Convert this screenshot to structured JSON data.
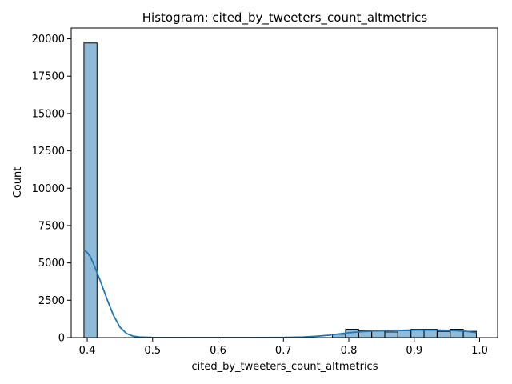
{
  "chart_data": {
    "type": "bar",
    "title": "Histogram: cited_by_tweeters_count_altmetrics",
    "xlabel": "cited_by_tweeters_count_altmetrics",
    "ylabel": "Count",
    "xlim": [
      0.3755,
      1.0275
    ],
    "ylim": [
      0,
      20725
    ],
    "xticks": [
      0.4,
      0.5,
      0.6,
      0.7,
      0.8,
      0.9,
      1.0
    ],
    "xtick_labels": [
      "0.4",
      "0.5",
      "0.6",
      "0.7",
      "0.8",
      "0.9",
      "1.0"
    ],
    "yticks": [
      0,
      2500,
      5000,
      7500,
      10000,
      12500,
      15000,
      17500,
      20000
    ],
    "ytick_labels": [
      "0",
      "2500",
      "5000",
      "7500",
      "10000",
      "12500",
      "15000",
      "17500",
      "20000"
    ],
    "bin_width": 0.02,
    "bins": [
      {
        "x0": 0.395,
        "x1": 0.415,
        "count": 19720
      },
      {
        "x0": 0.775,
        "x1": 0.795,
        "count": 230
      },
      {
        "x0": 0.795,
        "x1": 0.815,
        "count": 560
      },
      {
        "x0": 0.815,
        "x1": 0.835,
        "count": 450
      },
      {
        "x0": 0.835,
        "x1": 0.855,
        "count": 470
      },
      {
        "x0": 0.855,
        "x1": 0.875,
        "count": 380
      },
      {
        "x0": 0.875,
        "x1": 0.895,
        "count": 470
      },
      {
        "x0": 0.895,
        "x1": 0.915,
        "count": 560
      },
      {
        "x0": 0.915,
        "x1": 0.935,
        "count": 560
      },
      {
        "x0": 0.935,
        "x1": 0.955,
        "count": 420
      },
      {
        "x0": 0.955,
        "x1": 0.975,
        "count": 560
      },
      {
        "x0": 0.975,
        "x1": 0.995,
        "count": 420
      }
    ],
    "kde": {
      "x": [
        0.395,
        0.4,
        0.405,
        0.41,
        0.42,
        0.43,
        0.44,
        0.45,
        0.46,
        0.47,
        0.48,
        0.5,
        0.55,
        0.6,
        0.65,
        0.7,
        0.73,
        0.75,
        0.77,
        0.78,
        0.8,
        0.82,
        0.84,
        0.86,
        0.88,
        0.9,
        0.92,
        0.94,
        0.96,
        0.98,
        0.995
      ],
      "y": [
        5850,
        5700,
        5400,
        4900,
        3800,
        2600,
        1500,
        700,
        280,
        100,
        40,
        15,
        5,
        5,
        5,
        10,
        40,
        90,
        160,
        220,
        330,
        400,
        440,
        470,
        490,
        510,
        510,
        500,
        480,
        420,
        330
      ]
    },
    "colors": {
      "bar_fill": "#1f77b4",
      "bar_edge": "#000000",
      "kde_line": "#1f77b4"
    },
    "grid": false,
    "legend": "none"
  }
}
